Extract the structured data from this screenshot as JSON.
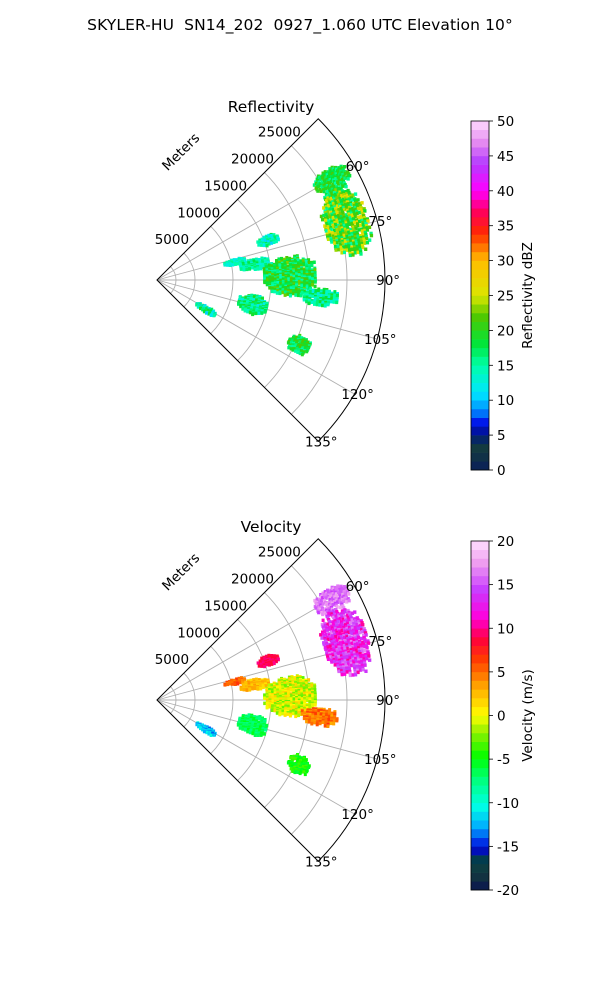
{
  "figure_title": "SKYLER-HU  SN14_202  0927_1.060 UTC Elevation 10°",
  "chart_data": [
    {
      "type": "heatmap",
      "subtype": "polar-sector-radar",
      "title": "Reflectivity",
      "radial_unit_label": "Meters",
      "radial_ticks": [
        5000,
        10000,
        15000,
        20000,
        25000
      ],
      "rlim": [
        0,
        30000
      ],
      "azimuth_ticks_deg": [
        60,
        75,
        90,
        105,
        120,
        135
      ],
      "azimuth_tick_labels": [
        "60°",
        "75°",
        "90°",
        "105°",
        "120°",
        "135°"
      ],
      "azimuth_range_deg": [
        45,
        135
      ],
      "grid": true,
      "colorbar": {
        "label": "Reflectivity dBZ",
        "range": [
          0,
          50
        ],
        "ticks": [
          0,
          5,
          10,
          15,
          20,
          25,
          30,
          35,
          40,
          45,
          50
        ]
      },
      "echo_regions": [
        {
          "azimuth_deg": [
            57,
            64
          ],
          "range_m": [
            24000,
            29000
          ],
          "value": [
            15,
            22
          ]
        },
        {
          "azimuth_deg": [
            63,
            83
          ],
          "range_m": [
            23000,
            29000
          ],
          "value": [
            15,
            27
          ]
        },
        {
          "azimuth_deg": [
            68,
            73
          ],
          "range_m": [
            14000,
            17000
          ],
          "value": [
            10,
            18
          ]
        },
        {
          "azimuth_deg": [
            75,
            79
          ],
          "range_m": [
            9000,
            12000
          ],
          "value": [
            12,
            16
          ]
        },
        {
          "azimuth_deg": [
            78,
            84
          ],
          "range_m": [
            11000,
            15000
          ],
          "value": [
            12,
            18
          ]
        },
        {
          "azimuth_deg": [
            80,
            97
          ],
          "range_m": [
            14000,
            21000
          ],
          "value": [
            14,
            23
          ]
        },
        {
          "azimuth_deg": [
            93,
            99
          ],
          "range_m": [
            19000,
            24000
          ],
          "value": [
            12,
            20
          ]
        },
        {
          "azimuth_deg": [
            99,
            110
          ],
          "range_m": [
            11000,
            15000
          ],
          "value": [
            12,
            20
          ]
        },
        {
          "azimuth_deg": [
            118,
            124
          ],
          "range_m": [
            6000,
            9000
          ],
          "value": [
            10,
            20
          ]
        },
        {
          "azimuth_deg": [
            111,
            118
          ],
          "range_m": [
            19000,
            22000
          ],
          "value": [
            15,
            22
          ]
        }
      ]
    },
    {
      "type": "heatmap",
      "subtype": "polar-sector-radar",
      "title": "Velocity",
      "radial_unit_label": "Meters",
      "radial_ticks": [
        5000,
        10000,
        15000,
        20000,
        25000
      ],
      "rlim": [
        0,
        30000
      ],
      "azimuth_ticks_deg": [
        60,
        75,
        90,
        105,
        120,
        135
      ],
      "azimuth_tick_labels": [
        "60°",
        "75°",
        "90°",
        "105°",
        "120°",
        "135°"
      ],
      "azimuth_range_deg": [
        45,
        135
      ],
      "grid": true,
      "colorbar": {
        "label": "Velocity (m/s)",
        "range": [
          -20,
          20
        ],
        "ticks": [
          -20,
          -15,
          -10,
          -5,
          0,
          5,
          10,
          15,
          20
        ]
      },
      "echo_regions": [
        {
          "azimuth_deg": [
            57,
            64
          ],
          "range_m": [
            24000,
            29000
          ],
          "value": [
            14,
            18
          ]
        },
        {
          "azimuth_deg": [
            63,
            83
          ],
          "range_m": [
            23000,
            29000
          ],
          "value": [
            10,
            17
          ]
        },
        {
          "azimuth_deg": [
            68,
            73
          ],
          "range_m": [
            14000,
            17000
          ],
          "value": [
            8,
            10
          ]
        },
        {
          "azimuth_deg": [
            75,
            79
          ],
          "range_m": [
            9000,
            12000
          ],
          "value": [
            4,
            7
          ]
        },
        {
          "azimuth_deg": [
            78,
            84
          ],
          "range_m": [
            11000,
            15000
          ],
          "value": [
            1,
            4
          ]
        },
        {
          "azimuth_deg": [
            80,
            97
          ],
          "range_m": [
            14000,
            21000
          ],
          "value": [
            -3,
            2
          ]
        },
        {
          "azimuth_deg": [
            93,
            99
          ],
          "range_m": [
            19000,
            24000
          ],
          "value": [
            3,
            7
          ]
        },
        {
          "azimuth_deg": [
            99,
            110
          ],
          "range_m": [
            11000,
            15000
          ],
          "value": [
            -8,
            -5
          ]
        },
        {
          "azimuth_deg": [
            118,
            124
          ],
          "range_m": [
            6000,
            9000
          ],
          "value": [
            -14,
            -10
          ]
        },
        {
          "azimuth_deg": [
            111,
            118
          ],
          "range_m": [
            19000,
            22000
          ],
          "value": [
            -6,
            -3
          ]
        }
      ]
    }
  ]
}
